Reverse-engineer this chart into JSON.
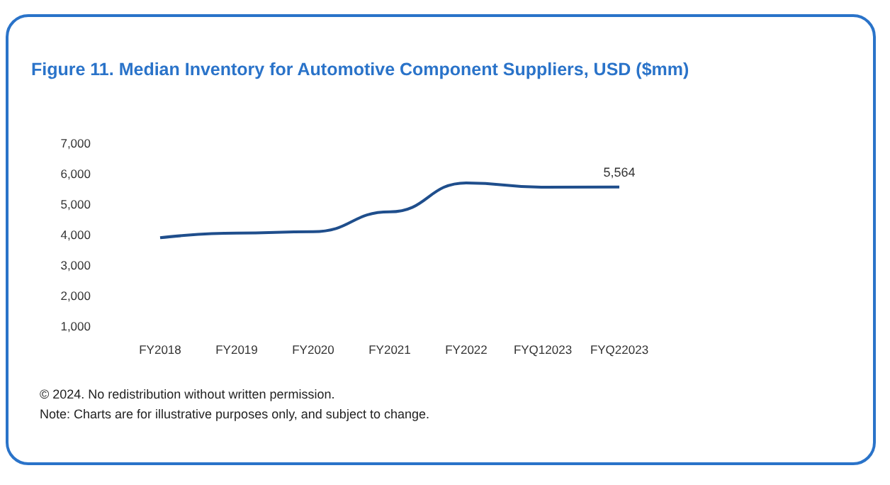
{
  "chart_data": {
    "type": "line",
    "title": "Figure 11. Median Inventory for Automotive Component Suppliers, USD ($mm)",
    "categories": [
      "FY2018",
      "FY2019",
      "FY2020",
      "FY2021",
      "FY2022",
      "FYQ12023",
      "FYQ22023"
    ],
    "series": [
      {
        "color": "#1f4e8c",
        "values": [
          3900,
          4050,
          4100,
          4750,
          5700,
          5560,
          5564
        ],
        "value_labels": [
          null,
          null,
          null,
          null,
          null,
          null,
          "5,564"
        ]
      }
    ],
    "ylim": [
      1000,
      7000
    ],
    "yticks": [
      {
        "value": 1000,
        "label": "1,000"
      },
      {
        "value": 2000,
        "label": "2,000"
      },
      {
        "value": 3000,
        "label": "3,000"
      },
      {
        "value": 4000,
        "label": "4,000"
      },
      {
        "value": 5000,
        "label": "5,000"
      },
      {
        "value": 6000,
        "label": "6,000"
      },
      {
        "value": 7000,
        "label": "7,000"
      }
    ],
    "grid": false,
    "marker": "none",
    "line_style": "solid",
    "annotations": [
      "© 2024. No redistribution without written permission.",
      "Note: Charts are for illustrative purposes only, and subject to change."
    ]
  }
}
